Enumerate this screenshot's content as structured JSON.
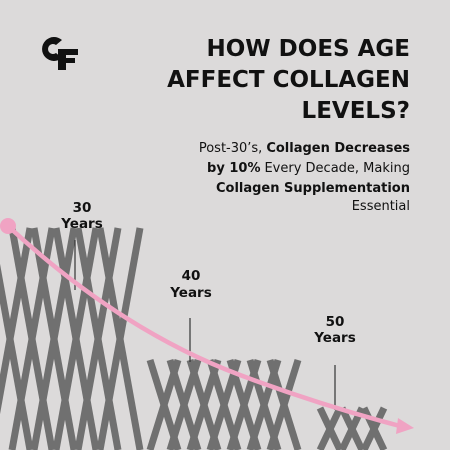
{
  "title": {
    "lines": [
      "HOW DOES AGE",
      "AFFECT COLLAGEN",
      "LEVELS?"
    ]
  },
  "subtitle": {
    "lines": [
      [
        "Post-30’s,",
        "Collagen Decreases"
      ],
      [
        "by 10%",
        "Every Decade, Making"
      ],
      [
        "Collagen Supplementation"
      ],
      [
        "Essential"
      ]
    ]
  },
  "markers": [
    [
      "30",
      "Years"
    ],
    [
      "40",
      "Years"
    ],
    [
      "50",
      "Years"
    ]
  ]
}
